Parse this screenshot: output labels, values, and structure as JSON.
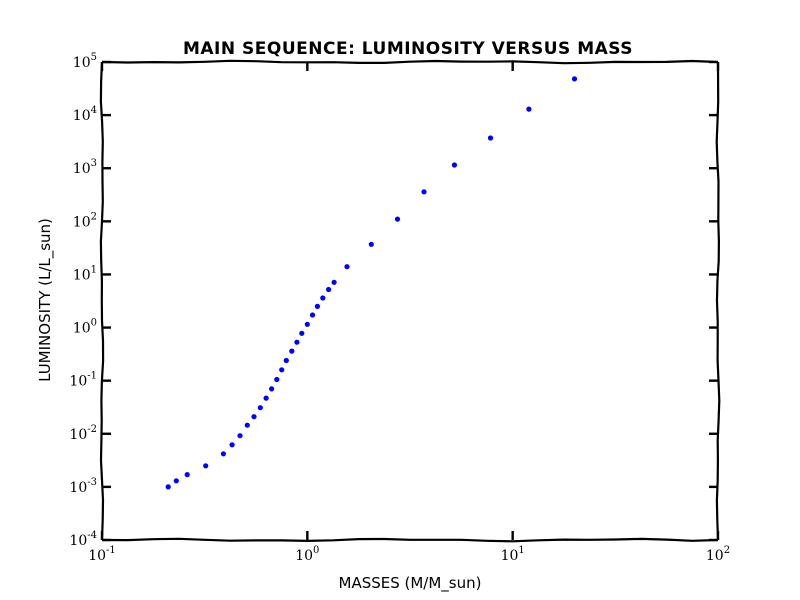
{
  "chart_data": {
    "type": "scatter",
    "title": "MAIN SEQUENCE: LUMINOSITY VERSUS MASS",
    "xlabel": "MASSES (M/M_sun)",
    "ylabel": "LUMINOSITY (L/L_sun)",
    "xscale": "log",
    "yscale": "log",
    "xlim": [
      0.1,
      100
    ],
    "ylim": [
      0.0001,
      100000
    ],
    "grid": false,
    "x_ticks": [
      {
        "base": "10",
        "exp": "-1",
        "value": 0.1
      },
      {
        "base": "10",
        "exp": "0",
        "value": 1
      },
      {
        "base": "10",
        "exp": "1",
        "value": 10
      },
      {
        "base": "10",
        "exp": "2",
        "value": 100
      }
    ],
    "y_ticks": [
      {
        "base": "10",
        "exp": "-4",
        "value": 0.0001
      },
      {
        "base": "10",
        "exp": "-3",
        "value": 0.001
      },
      {
        "base": "10",
        "exp": "-2",
        "value": 0.01
      },
      {
        "base": "10",
        "exp": "-1",
        "value": 0.1
      },
      {
        "base": "10",
        "exp": "0",
        "value": 1
      },
      {
        "base": "10",
        "exp": "1",
        "value": 10
      },
      {
        "base": "10",
        "exp": "2",
        "value": 100
      },
      {
        "base": "10",
        "exp": "3",
        "value": 1000
      },
      {
        "base": "10",
        "exp": "4",
        "value": 10000
      },
      {
        "base": "10",
        "exp": "5",
        "value": 100000
      }
    ],
    "series": [
      {
        "color": "#0000ff",
        "points": [
          {
            "x": 0.21,
            "y": 0.001
          },
          {
            "x": 0.23,
            "y": 0.0013
          },
          {
            "x": 0.26,
            "y": 0.0017
          },
          {
            "x": 0.32,
            "y": 0.0025
          },
          {
            "x": 0.39,
            "y": 0.0042
          },
          {
            "x": 0.43,
            "y": 0.0062
          },
          {
            "x": 0.47,
            "y": 0.0092
          },
          {
            "x": 0.51,
            "y": 0.0145
          },
          {
            "x": 0.55,
            "y": 0.021
          },
          {
            "x": 0.59,
            "y": 0.031
          },
          {
            "x": 0.63,
            "y": 0.047
          },
          {
            "x": 0.67,
            "y": 0.07
          },
          {
            "x": 0.71,
            "y": 0.105
          },
          {
            "x": 0.75,
            "y": 0.16
          },
          {
            "x": 0.79,
            "y": 0.24
          },
          {
            "x": 0.84,
            "y": 0.36
          },
          {
            "x": 0.89,
            "y": 0.53
          },
          {
            "x": 0.94,
            "y": 0.78
          },
          {
            "x": 1.0,
            "y": 1.15
          },
          {
            "x": 1.06,
            "y": 1.72
          },
          {
            "x": 1.12,
            "y": 2.5
          },
          {
            "x": 1.19,
            "y": 3.6
          },
          {
            "x": 1.27,
            "y": 5.2
          },
          {
            "x": 1.35,
            "y": 7.1
          },
          {
            "x": 1.56,
            "y": 14
          },
          {
            "x": 2.05,
            "y": 37
          },
          {
            "x": 2.75,
            "y": 110
          },
          {
            "x": 3.7,
            "y": 360
          },
          {
            "x": 5.2,
            "y": 1150
          },
          {
            "x": 7.8,
            "y": 3700
          },
          {
            "x": 12.0,
            "y": 13000
          },
          {
            "x": 20.0,
            "y": 48000
          }
        ]
      }
    ]
  }
}
